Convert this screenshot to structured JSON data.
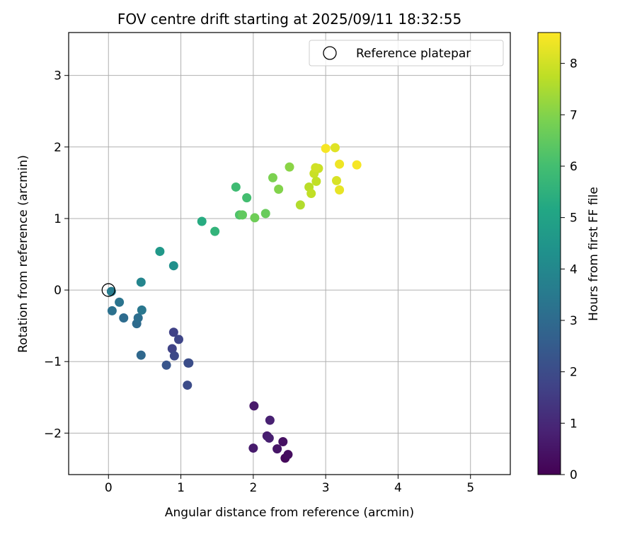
{
  "chart_data": {
    "type": "scatter",
    "title": "FOV centre drift starting at 2025/09/11 18:32:55",
    "xlabel": "Angular distance from reference (arcmin)",
    "ylabel": "Rotation from reference (arcmin)",
    "xlim": [
      -0.55,
      5.55
    ],
    "ylim": [
      -2.58,
      3.6
    ],
    "xticks": [
      0,
      1,
      2,
      3,
      4,
      5
    ],
    "yticks": [
      -2,
      -1,
      0,
      1,
      2,
      3
    ],
    "xtick_labels": [
      "0",
      "1",
      "2",
      "3",
      "4",
      "5"
    ],
    "ytick_labels": [
      "−2",
      "−1",
      "0",
      "1",
      "2",
      "3"
    ],
    "grid": true,
    "colormap": "viridis",
    "colorbar": {
      "label": "Hours from first FF file",
      "range": [
        0,
        8.6
      ],
      "ticks": [
        0,
        1,
        2,
        3,
        4,
        5,
        6,
        7,
        8
      ],
      "tick_labels": [
        "0",
        "1",
        "2",
        "3",
        "4",
        "5",
        "6",
        "7",
        "8"
      ]
    },
    "legend": {
      "position": "top-right",
      "entries": [
        {
          "label": "Reference platepar",
          "marker": "open-circle"
        }
      ]
    },
    "reference_point": {
      "x": 0,
      "y": 0
    },
    "points": [
      {
        "x": 2.01,
        "y": -1.62,
        "c": 0.6
      },
      {
        "x": 2.23,
        "y": -1.82,
        "c": 0.8
      },
      {
        "x": 2.19,
        "y": -2.04,
        "c": 0.7
      },
      {
        "x": 2.22,
        "y": -2.07,
        "c": 0.75
      },
      {
        "x": 2.0,
        "y": -2.21,
        "c": 0.65
      },
      {
        "x": 2.33,
        "y": -2.22,
        "c": 0.5
      },
      {
        "x": 2.41,
        "y": -2.12,
        "c": 0.4
      },
      {
        "x": 2.44,
        "y": -2.35,
        "c": 0.2
      },
      {
        "x": 2.48,
        "y": -2.3,
        "c": 0.3
      },
      {
        "x": 0.9,
        "y": -0.59,
        "c": 1.7
      },
      {
        "x": 0.97,
        "y": -0.69,
        "c": 1.8
      },
      {
        "x": 0.88,
        "y": -0.82,
        "c": 1.75
      },
      {
        "x": 0.91,
        "y": -0.92,
        "c": 1.9
      },
      {
        "x": 0.8,
        "y": -1.05,
        "c": 2.3
      },
      {
        "x": 1.1,
        "y": -1.02,
        "c": 2.1
      },
      {
        "x": 1.11,
        "y": -1.02,
        "c": 2.05
      },
      {
        "x": 1.09,
        "y": -1.33,
        "c": 2.0
      },
      {
        "x": 0.45,
        "y": -0.91,
        "c": 2.9
      },
      {
        "x": 0.39,
        "y": -0.47,
        "c": 3.0
      },
      {
        "x": 0.41,
        "y": -0.39,
        "c": 3.1
      },
      {
        "x": 0.21,
        "y": -0.39,
        "c": 3.05
      },
      {
        "x": 0.05,
        "y": -0.29,
        "c": 3.2
      },
      {
        "x": 0.15,
        "y": -0.17,
        "c": 3.3
      },
      {
        "x": 0.46,
        "y": -0.28,
        "c": 3.4
      },
      {
        "x": 0.04,
        "y": -0.02,
        "c": 3.6
      },
      {
        "x": 0.45,
        "y": 0.11,
        "c": 3.9
      },
      {
        "x": 0.9,
        "y": 0.34,
        "c": 4.3
      },
      {
        "x": 0.71,
        "y": 0.54,
        "c": 4.6
      },
      {
        "x": 1.29,
        "y": 0.96,
        "c": 5.3
      },
      {
        "x": 1.47,
        "y": 0.82,
        "c": 5.6
      },
      {
        "x": 1.76,
        "y": 1.44,
        "c": 5.9
      },
      {
        "x": 1.91,
        "y": 1.29,
        "c": 6.0
      },
      {
        "x": 1.81,
        "y": 1.05,
        "c": 6.2
      },
      {
        "x": 1.85,
        "y": 1.05,
        "c": 6.5
      },
      {
        "x": 2.02,
        "y": 1.01,
        "c": 6.7
      },
      {
        "x": 2.17,
        "y": 1.07,
        "c": 6.6
      },
      {
        "x": 2.27,
        "y": 1.57,
        "c": 6.9
      },
      {
        "x": 2.35,
        "y": 1.41,
        "c": 7.0
      },
      {
        "x": 2.5,
        "y": 1.72,
        "c": 7.1
      },
      {
        "x": 2.65,
        "y": 1.19,
        "c": 7.6
      },
      {
        "x": 2.77,
        "y": 1.44,
        "c": 7.7
      },
      {
        "x": 2.8,
        "y": 1.35,
        "c": 7.8
      },
      {
        "x": 2.84,
        "y": 1.63,
        "c": 7.9
      },
      {
        "x": 2.87,
        "y": 1.52,
        "c": 7.8
      },
      {
        "x": 2.9,
        "y": 1.7,
        "c": 7.9
      },
      {
        "x": 2.86,
        "y": 1.71,
        "c": 8.0
      },
      {
        "x": 3.0,
        "y": 1.98,
        "c": 8.5
      },
      {
        "x": 3.13,
        "y": 1.99,
        "c": 8.2
      },
      {
        "x": 3.15,
        "y": 1.53,
        "c": 8.1
      },
      {
        "x": 3.19,
        "y": 1.4,
        "c": 8.3
      },
      {
        "x": 3.19,
        "y": 1.76,
        "c": 8.4
      },
      {
        "x": 3.43,
        "y": 1.75,
        "c": 8.5
      }
    ]
  }
}
